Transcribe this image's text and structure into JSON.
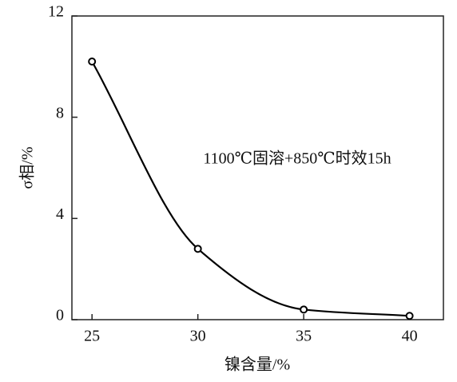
{
  "chart_data": {
    "type": "line",
    "x": [
      25,
      30,
      35,
      40
    ],
    "series": [
      {
        "values": [
          10.2,
          2.8,
          0.4,
          0.15
        ],
        "color": "#000000"
      }
    ],
    "xlim": [
      24.05,
      41.6
    ],
    "xticks": [
      25,
      30,
      35,
      40
    ],
    "ylim": [
      0,
      12
    ],
    "yticks": [
      0,
      4,
      8,
      12
    ],
    "xlabel": "镍含量/%",
    "ylabel": "σ相/%",
    "annotation": "1100℃固溶+850℃时效15h"
  }
}
